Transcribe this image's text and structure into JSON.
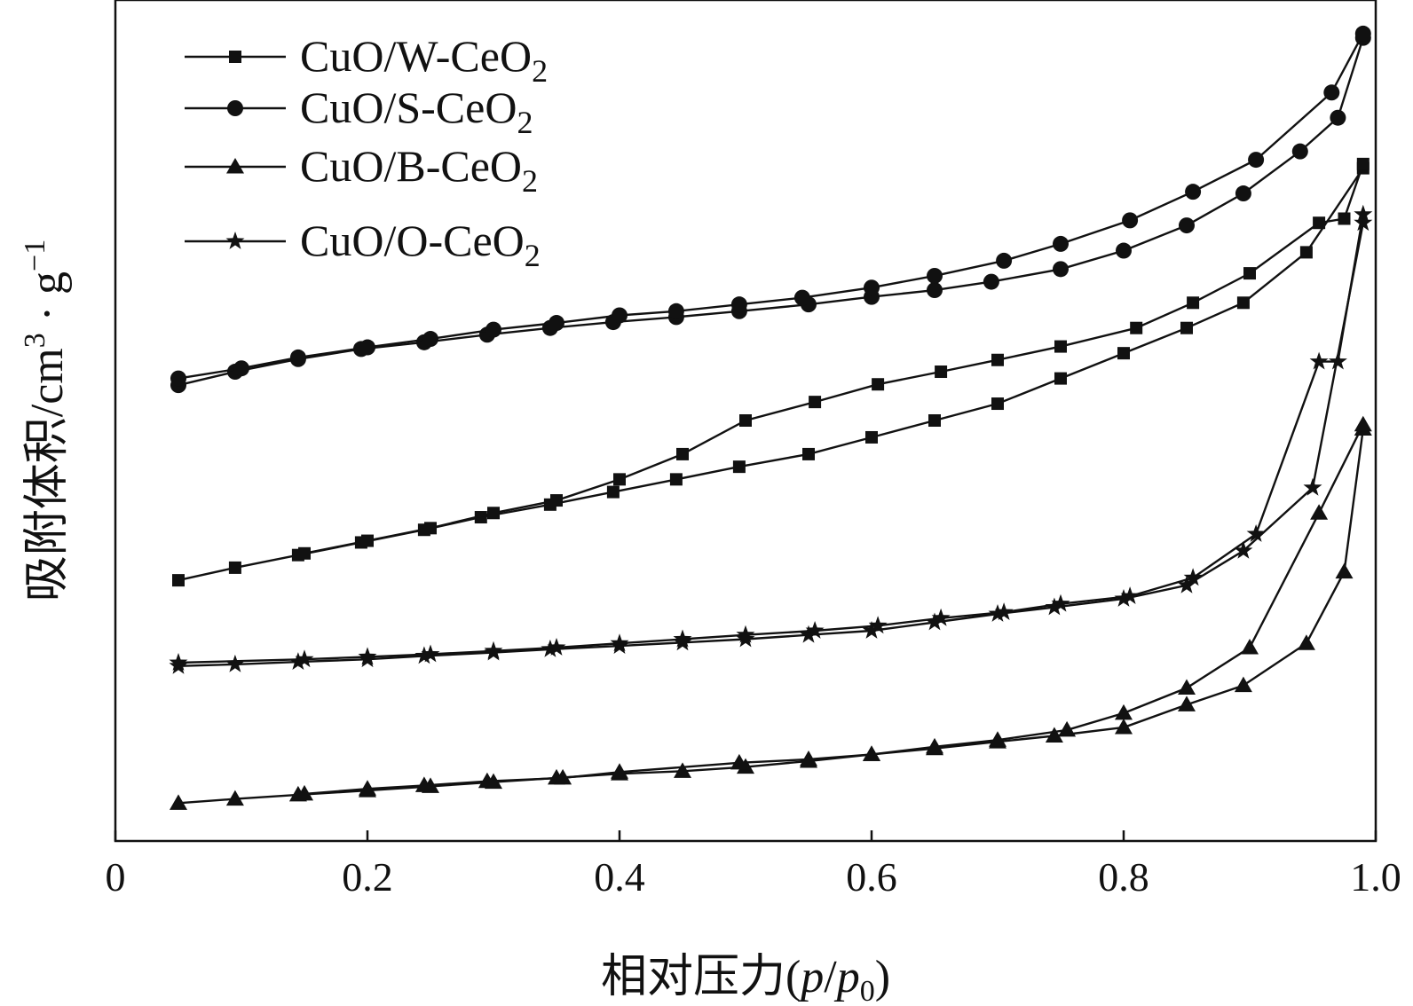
{
  "chart_data": {
    "type": "line",
    "title": "",
    "xlabel": "相对压力(p/p0)",
    "xlabel_parts": [
      "相对压力(",
      "p",
      "/",
      "p",
      "0",
      ")"
    ],
    "ylabel": "吸附体积/cm3 · g-1",
    "ylabel_parts": [
      "吸附体积/cm",
      "3",
      " · g",
      "−1"
    ],
    "xlim": [
      0,
      1.0
    ],
    "ylim": [
      0,
      100
    ],
    "x_ticks": [
      {
        "value": 0,
        "label": "0"
      },
      {
        "value": 0.2,
        "label": "0.2"
      },
      {
        "value": 0.4,
        "label": "0.4"
      },
      {
        "value": 0.6,
        "label": "0.6"
      },
      {
        "value": 0.8,
        "label": "0.8"
      },
      {
        "value": 1.0,
        "label": "1.0"
      }
    ],
    "y_ticks": [],
    "grid": false,
    "legend_position": "top-left",
    "series": [
      {
        "name": "CuO/W-CeO2",
        "label_main": "CuO/W-CeO",
        "label_sub": "2",
        "marker": "square",
        "adsorption": {
          "x": [
            0.05,
            0.095,
            0.145,
            0.195,
            0.245,
            0.29,
            0.345,
            0.395,
            0.445,
            0.495,
            0.55,
            0.6,
            0.65,
            0.7,
            0.75,
            0.8,
            0.85,
            0.895,
            0.945,
            0.99
          ],
          "y": [
            31.0,
            32.5,
            34.0,
            35.5,
            37.0,
            38.5,
            40.0,
            41.5,
            43.0,
            44.5,
            46.0,
            48.0,
            50.0,
            52.0,
            55.0,
            58.0,
            61.0,
            64.0,
            70.0,
            80.0
          ]
        },
        "desorption": {
          "x": [
            0.99,
            0.975,
            0.955,
            0.9,
            0.855,
            0.81,
            0.75,
            0.7,
            0.655,
            0.605,
            0.555,
            0.5,
            0.45,
            0.4,
            0.35,
            0.3,
            0.25,
            0.2,
            0.15
          ],
          "y": [
            80.5,
            74.0,
            73.5,
            67.5,
            64.0,
            61.0,
            58.8,
            57.2,
            55.8,
            54.3,
            52.2,
            50.0,
            46.0,
            43.0,
            40.5,
            39.0,
            37.2,
            35.7,
            34.2
          ]
        }
      },
      {
        "name": "CuO/S-CeO2",
        "label_main": "CuO/S-CeO",
        "label_sub": "2",
        "marker": "circle",
        "adsorption": {
          "x": [
            0.05,
            0.095,
            0.145,
            0.195,
            0.245,
            0.295,
            0.345,
            0.395,
            0.445,
            0.495,
            0.55,
            0.6,
            0.65,
            0.695,
            0.75,
            0.8,
            0.85,
            0.895,
            0.94,
            0.97,
            0.99
          ],
          "y": [
            54.2,
            55.8,
            57.3,
            58.5,
            59.3,
            60.2,
            61.0,
            61.7,
            62.3,
            63.0,
            63.8,
            64.7,
            65.5,
            66.5,
            68.0,
            70.2,
            73.2,
            77.0,
            82.0,
            86.0,
            95.5
          ]
        },
        "desorption": {
          "x": [
            0.99,
            0.965,
            0.905,
            0.855,
            0.805,
            0.75,
            0.705,
            0.65,
            0.6,
            0.545,
            0.495,
            0.445,
            0.4,
            0.35,
            0.3,
            0.25,
            0.2,
            0.145,
            0.1,
            0.05
          ],
          "y": [
            96.0,
            89.0,
            81.0,
            77.2,
            73.8,
            71.0,
            69.0,
            67.2,
            65.8,
            64.6,
            63.8,
            63.0,
            62.5,
            61.6,
            60.8,
            59.7,
            58.7,
            57.5,
            56.2,
            55.0
          ]
        }
      },
      {
        "name": "CuO/B-CeO2",
        "label_main": "CuO/B-CeO",
        "label_sub": "2",
        "marker": "triangle",
        "adsorption": {
          "x": [
            0.05,
            0.095,
            0.145,
            0.2,
            0.25,
            0.3,
            0.35,
            0.4,
            0.45,
            0.5,
            0.55,
            0.6,
            0.65,
            0.7,
            0.745,
            0.8,
            0.85,
            0.895,
            0.945,
            0.975,
            0.99
          ],
          "y": [
            4.5,
            5.0,
            5.5,
            6.0,
            6.5,
            7.0,
            7.5,
            8.0,
            8.3,
            8.8,
            9.5,
            10.3,
            11.0,
            11.8,
            12.5,
            13.5,
            16.2,
            18.5,
            23.5,
            32.0,
            49.0
          ]
        },
        "desorption": {
          "x": [
            0.99,
            0.955,
            0.9,
            0.85,
            0.8,
            0.755,
            0.7,
            0.65,
            0.6,
            0.55,
            0.495,
            0.4,
            0.355,
            0.295,
            0.245,
            0.2,
            0.15
          ],
          "y": [
            49.5,
            39.0,
            23.0,
            18.2,
            15.2,
            13.2,
            12.0,
            11.2,
            10.3,
            9.7,
            9.3,
            8.2,
            7.5,
            7.1,
            6.6,
            6.2,
            5.6
          ]
        }
      },
      {
        "name": "CuO/O-CeO2",
        "label_main": "CuO/O-CeO",
        "label_sub": "2",
        "marker": "star",
        "adsorption": {
          "x": [
            0.05,
            0.095,
            0.145,
            0.2,
            0.245,
            0.3,
            0.345,
            0.4,
            0.45,
            0.5,
            0.55,
            0.6,
            0.65,
            0.7,
            0.745,
            0.8,
            0.85,
            0.895,
            0.95,
            0.99
          ],
          "y": [
            20.8,
            21.0,
            21.3,
            21.6,
            22.0,
            22.4,
            22.8,
            23.2,
            23.6,
            24.0,
            24.5,
            25.0,
            26.0,
            27.0,
            27.8,
            28.8,
            30.4,
            34.5,
            42.0,
            73.5
          ]
        },
        "desorption": {
          "x": [
            0.99,
            0.97,
            0.955,
            0.905,
            0.855,
            0.805,
            0.75,
            0.705,
            0.655,
            0.605,
            0.555,
            0.5,
            0.45,
            0.4,
            0.35,
            0.3,
            0.25,
            0.2,
            0.15,
            0.05
          ],
          "y": [
            74.5,
            57.0,
            57.0,
            36.5,
            31.3,
            29.1,
            28.2,
            27.2,
            26.5,
            25.6,
            25.0,
            24.5,
            24.0,
            23.5,
            23.0,
            22.6,
            22.2,
            21.9,
            21.6,
            21.2
          ]
        }
      }
    ]
  }
}
